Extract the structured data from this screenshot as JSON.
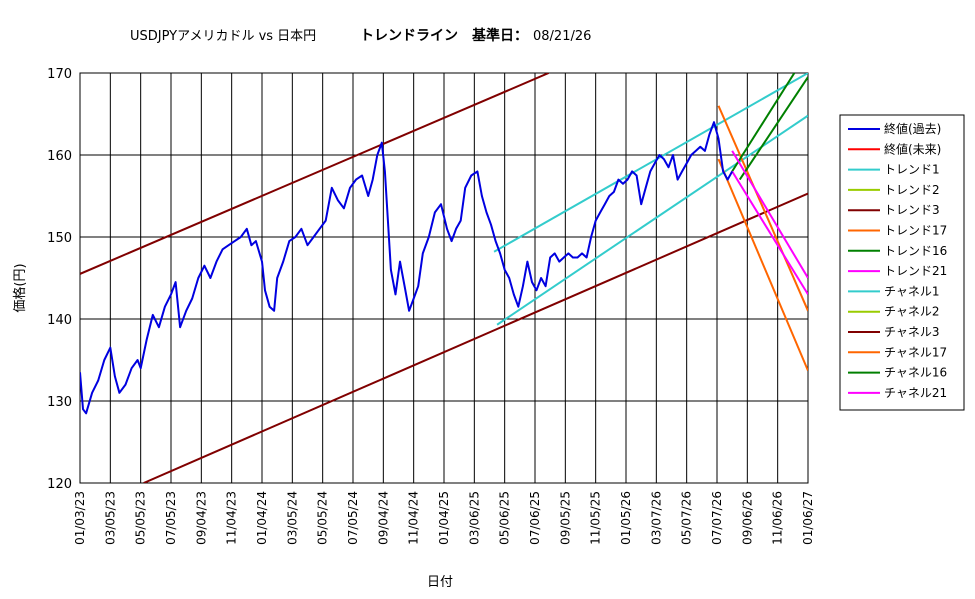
{
  "chart_data": {
    "type": "line",
    "title_left": "USDJPYアメリカドル vs 日本円",
    "title_right": "トレンドライン　基準日：",
    "title_date": "08/21/26",
    "xlabel": "日付",
    "ylabel": "価格(円)",
    "ylim": [
      120,
      170
    ],
    "yticks": [
      120,
      130,
      140,
      150,
      160,
      170
    ],
    "xlim": [
      0,
      48
    ],
    "x_tick_labels": [
      "01/03/23",
      "03/05/23",
      "05/05/23",
      "07/05/23",
      "09/04/23",
      "11/04/23",
      "01/04/24",
      "03/05/24",
      "05/05/24",
      "07/05/24",
      "09/04/24",
      "11/04/24",
      "01/04/25",
      "03/06/25",
      "05/06/25",
      "07/06/25",
      "09/05/25",
      "11/05/25",
      "01/05/26",
      "03/07/26",
      "05/07/26",
      "07/07/26",
      "09/06/26",
      "11/06/26",
      "01/06/27"
    ],
    "grid": true,
    "legend_position": "right",
    "legend": [
      "終値(過去)",
      "終値(未来)",
      "トレンド1",
      "トレンド2",
      "トレンド3",
      "トレンド17",
      "トレンド16",
      "トレンド21",
      "チャネル1",
      "チャネル2",
      "チャネル3",
      "チャネル17",
      "チャネル16",
      "チャネル21"
    ],
    "colors": {
      "close_past": "#0000e0",
      "close_future": "#ff0000",
      "trend1": "#33cccc",
      "trend2": "#99cc00",
      "trend3": "#800000",
      "trend17": "#ff6600",
      "trend16": "#008000",
      "trend21": "#ff00ff"
    },
    "close_past": [
      [
        0,
        133.5
      ],
      [
        0.2,
        129
      ],
      [
        0.4,
        128.5
      ],
      [
        0.8,
        131
      ],
      [
        1.2,
        132.5
      ],
      [
        1.6,
        135
      ],
      [
        2,
        136.5
      ],
      [
        2.3,
        133
      ],
      [
        2.6,
        131
      ],
      [
        3,
        132
      ],
      [
        3.4,
        134
      ],
      [
        3.8,
        135
      ],
      [
        4,
        134
      ],
      [
        4.4,
        137.5
      ],
      [
        4.8,
        140.5
      ],
      [
        5.2,
        139
      ],
      [
        5.6,
        141.5
      ],
      [
        6,
        143
      ],
      [
        6.3,
        144.5
      ],
      [
        6.6,
        139
      ],
      [
        7,
        141
      ],
      [
        7.4,
        142.5
      ],
      [
        7.8,
        145
      ],
      [
        8.2,
        146.5
      ],
      [
        8.6,
        145
      ],
      [
        9,
        147
      ],
      [
        9.4,
        148.5
      ],
      [
        9.8,
        149
      ],
      [
        10.2,
        149.5
      ],
      [
        10.6,
        150
      ],
      [
        11,
        151
      ],
      [
        11.3,
        149
      ],
      [
        11.6,
        149.5
      ],
      [
        12,
        147
      ],
      [
        12.2,
        143.5
      ],
      [
        12.5,
        141.5
      ],
      [
        12.8,
        141
      ],
      [
        13,
        145
      ],
      [
        13.4,
        147
      ],
      [
        13.8,
        149.5
      ],
      [
        14.2,
        150
      ],
      [
        14.6,
        151
      ],
      [
        15,
        149
      ],
      [
        15.4,
        150
      ],
      [
        15.8,
        151
      ],
      [
        16.2,
        152
      ],
      [
        16.6,
        156
      ],
      [
        17,
        154.5
      ],
      [
        17.4,
        153.5
      ],
      [
        17.8,
        156
      ],
      [
        18.2,
        157
      ],
      [
        18.6,
        157.5
      ],
      [
        19,
        155
      ],
      [
        19.3,
        157
      ],
      [
        19.6,
        160
      ],
      [
        19.9,
        161.5
      ],
      [
        20.1,
        158
      ],
      [
        20.3,
        152
      ],
      [
        20.5,
        146
      ],
      [
        20.8,
        143
      ],
      [
        21.1,
        147
      ],
      [
        21.4,
        144
      ],
      [
        21.7,
        141
      ],
      [
        22,
        142.5
      ],
      [
        22.3,
        144
      ],
      [
        22.6,
        148
      ],
      [
        23,
        150
      ],
      [
        23.4,
        153
      ],
      [
        23.8,
        154
      ],
      [
        24.2,
        151
      ],
      [
        24.5,
        149.5
      ],
      [
        24.8,
        151
      ],
      [
        25.1,
        152
      ],
      [
        25.4,
        156
      ],
      [
        25.8,
        157.5
      ],
      [
        26.2,
        158
      ],
      [
        26.5,
        155
      ],
      [
        26.8,
        153
      ],
      [
        27.1,
        151.5
      ],
      [
        27.4,
        149.5
      ],
      [
        27.7,
        148
      ],
      [
        28,
        146
      ],
      [
        28.3,
        145
      ],
      [
        28.6,
        143
      ],
      [
        28.9,
        141.5
      ],
      [
        29.2,
        144
      ],
      [
        29.5,
        147
      ],
      [
        29.8,
        144.5
      ],
      [
        30.1,
        143.5
      ],
      [
        30.4,
        145
      ],
      [
        30.7,
        144
      ],
      [
        31,
        147.5
      ],
      [
        31.3,
        148
      ],
      [
        31.6,
        147
      ],
      [
        31.9,
        147.5
      ],
      [
        32.2,
        148
      ],
      [
        32.5,
        147.5
      ],
      [
        32.8,
        147.5
      ],
      [
        33.1,
        148
      ],
      [
        33.4,
        147.5
      ],
      [
        33.7,
        150
      ],
      [
        34,
        152
      ],
      [
        34.3,
        153
      ],
      [
        34.6,
        154
      ],
      [
        34.9,
        155
      ],
      [
        35.2,
        155.5
      ],
      [
        35.5,
        157
      ],
      [
        35.8,
        156.5
      ],
      [
        36.1,
        157
      ],
      [
        36.4,
        158
      ],
      [
        36.7,
        157.5
      ],
      [
        37,
        154
      ],
      [
        37.3,
        156
      ],
      [
        37.6,
        158
      ],
      [
        37.9,
        159
      ],
      [
        38.2,
        160
      ],
      [
        38.5,
        159.5
      ],
      [
        38.8,
        158.5
      ],
      [
        39.1,
        160
      ],
      [
        39.4,
        157
      ],
      [
        39.7,
        158
      ],
      [
        40,
        159
      ],
      [
        40.3,
        160
      ],
      [
        40.6,
        160.5
      ],
      [
        40.9,
        161
      ],
      [
        41.2,
        160.5
      ],
      [
        41.5,
        162.5
      ],
      [
        41.8,
        164
      ],
      [
        42.1,
        162
      ],
      [
        42.4,
        158
      ],
      [
        42.7,
        157
      ],
      [
        43,
        158
      ]
    ],
    "lines": [
      {
        "key": "trend1",
        "x": [
          27.3,
          48
        ],
        "y": [
          148.2,
          170
        ]
      },
      {
        "key": "trend1",
        "x": [
          27.5,
          48
        ],
        "y": [
          139.3,
          164.8
        ]
      },
      {
        "key": "trend3",
        "x": [
          0,
          30.9
        ],
        "y": [
          145.5,
          170
        ]
      },
      {
        "key": "trend3",
        "x": [
          4.2,
          48
        ],
        "y": [
          120,
          155.3
        ]
      },
      {
        "key": "trend17",
        "x": [
          42.1,
          48
        ],
        "y": [
          166,
          141
        ]
      },
      {
        "key": "trend17",
        "x": [
          42.1,
          48
        ],
        "y": [
          159.5,
          133.7
        ]
      },
      {
        "key": "trend16",
        "x": [
          43,
          47.1
        ],
        "y": [
          158,
          170
        ]
      },
      {
        "key": "trend16",
        "x": [
          43.5,
          48
        ],
        "y": [
          157,
          169.5
        ]
      },
      {
        "key": "trend21",
        "x": [
          43,
          48
        ],
        "y": [
          160.5,
          145
        ]
      },
      {
        "key": "trend21",
        "x": [
          43,
          48
        ],
        "y": [
          158,
          143
        ]
      }
    ]
  }
}
